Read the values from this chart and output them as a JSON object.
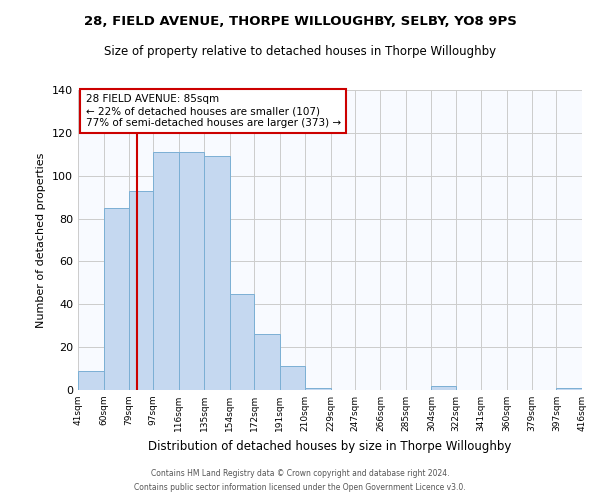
{
  "title1": "28, FIELD AVENUE, THORPE WILLOUGHBY, SELBY, YO8 9PS",
  "title2": "Size of property relative to detached houses in Thorpe Willoughby",
  "xlabel": "Distribution of detached houses by size in Thorpe Willoughby",
  "ylabel": "Number of detached properties",
  "bin_edges": [
    41,
    60,
    79,
    97,
    116,
    135,
    154,
    172,
    191,
    210,
    229,
    247,
    266,
    285,
    304,
    322,
    341,
    360,
    379,
    397,
    416
  ],
  "bin_labels": [
    "41sqm",
    "60sqm",
    "79sqm",
    "97sqm",
    "116sqm",
    "135sqm",
    "154sqm",
    "172sqm",
    "191sqm",
    "210sqm",
    "229sqm",
    "247sqm",
    "266sqm",
    "285sqm",
    "304sqm",
    "322sqm",
    "341sqm",
    "360sqm",
    "379sqm",
    "397sqm",
    "416sqm"
  ],
  "counts": [
    9,
    85,
    93,
    111,
    111,
    109,
    45,
    26,
    11,
    1,
    0,
    0,
    0,
    0,
    2,
    0,
    0,
    0,
    0,
    1
  ],
  "bar_color": "#C5D8F0",
  "bar_edge_color": "#7BAFD4",
  "vline_x": 85,
  "vline_color": "#CC0000",
  "annotation_title": "28 FIELD AVENUE: 85sqm",
  "annotation_line1": "← 22% of detached houses are smaller (107)",
  "annotation_line2": "77% of semi-detached houses are larger (373) →",
  "annotation_box_color": "#CC0000",
  "background_color": "#FFFFFF",
  "plot_bg_color": "#F8FAFF",
  "grid_color": "#CCCCCC",
  "footer1": "Contains HM Land Registry data © Crown copyright and database right 2024.",
  "footer2": "Contains public sector information licensed under the Open Government Licence v3.0.",
  "ylim": [
    0,
    140
  ],
  "yticks": [
    0,
    20,
    40,
    60,
    80,
    100,
    120,
    140
  ]
}
